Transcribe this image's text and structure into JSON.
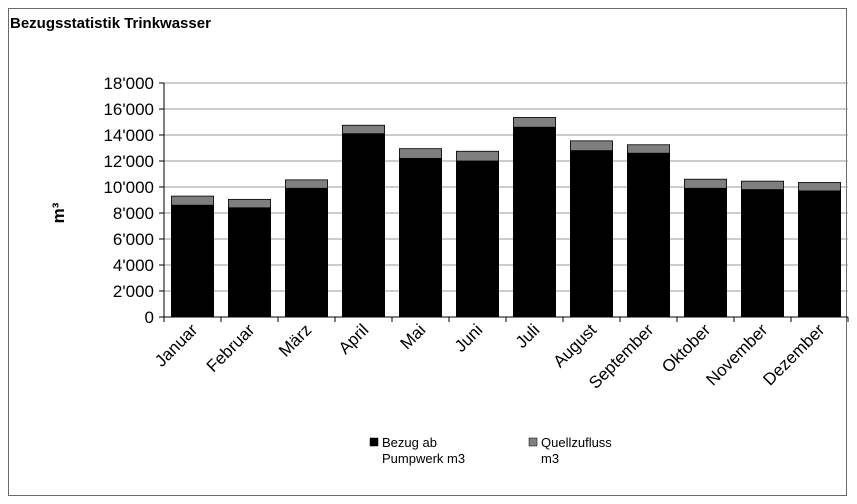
{
  "chart_data": {
    "type": "bar",
    "stacked": true,
    "title": "Bezugsstatistik Trinkwasser",
    "ylabel": "m³",
    "xlabel": "",
    "ylim": [
      0,
      18000
    ],
    "yticks": [
      0,
      2000,
      4000,
      6000,
      8000,
      10000,
      12000,
      14000,
      16000,
      18000
    ],
    "ytick_labels": [
      "0",
      "2'000",
      "4'000",
      "6'000",
      "8'000",
      "10'000",
      "12'000",
      "14'000",
      "16'000",
      "18'000"
    ],
    "grid": true,
    "legend_position": "bottom",
    "categories": [
      "Januar",
      "Februar",
      "März",
      "April",
      "Mai",
      "Juni",
      "Juli",
      "August",
      "September",
      "Oktober",
      "November",
      "Dezember"
    ],
    "series": [
      {
        "name": "Bezug ab Pumpwerk m3",
        "legend_lines": [
          "Bezug ab",
          "Pumpwerk m3"
        ],
        "color": "#000000",
        "values": [
          8600,
          8400,
          9900,
          14100,
          12200,
          12000,
          14600,
          12800,
          12600,
          9900,
          9800,
          9700
        ]
      },
      {
        "name": "Quellzufluss m3",
        "legend_lines": [
          "Quellzufluss",
          "m3"
        ],
        "color": "#7f7f7f",
        "values": [
          700,
          650,
          650,
          650,
          750,
          750,
          750,
          750,
          650,
          700,
          650,
          650
        ]
      }
    ]
  }
}
